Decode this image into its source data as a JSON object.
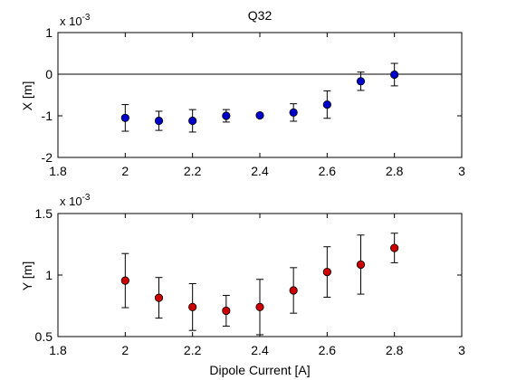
{
  "chart_data": [
    {
      "type": "scatter",
      "title": "Q32",
      "xlabel": "",
      "ylabel": "X [m]",
      "exponent_label": "x 10",
      "exponent_power": "-3",
      "xlim": [
        1.8,
        3
      ],
      "ylim": [
        -2,
        1
      ],
      "xticks": [
        "1.8",
        "2",
        "2.2",
        "2.4",
        "2.6",
        "2.8",
        "3"
      ],
      "yticks": [
        "-2",
        "-1",
        "0",
        "1"
      ],
      "zero_line": true,
      "grid": false,
      "series": [
        {
          "color": "#0000cc",
          "x": [
            2.0,
            2.1,
            2.2,
            2.3,
            2.4,
            2.5,
            2.6,
            2.7,
            2.8
          ],
          "y": [
            -1.05,
            -1.12,
            -1.12,
            -1.0,
            -0.99,
            -0.92,
            -0.73,
            -0.17,
            -0.01
          ],
          "err": [
            0.32,
            0.23,
            0.27,
            0.15,
            0.05,
            0.21,
            0.33,
            0.22,
            0.27
          ]
        }
      ]
    },
    {
      "type": "scatter",
      "title": "",
      "xlabel": "Dipole Current [A]",
      "ylabel": "Y [m]",
      "exponent_label": "x 10",
      "exponent_power": "-3",
      "xlim": [
        1.8,
        3
      ],
      "ylim": [
        0.5,
        1.5
      ],
      "xticks": [
        "1.8",
        "2",
        "2.2",
        "2.4",
        "2.6",
        "2.8",
        "3"
      ],
      "yticks": [
        "0.5",
        "1",
        "1.5"
      ],
      "zero_line": false,
      "grid": false,
      "series": [
        {
          "color": "#cc0000",
          "x": [
            2.0,
            2.1,
            2.2,
            2.3,
            2.4,
            2.5,
            2.6,
            2.7,
            2.8
          ],
          "y": [
            0.955,
            0.815,
            0.74,
            0.71,
            0.74,
            0.875,
            1.025,
            1.085,
            1.22
          ],
          "err": [
            0.22,
            0.165,
            0.19,
            0.125,
            0.225,
            0.185,
            0.205,
            0.24,
            0.12
          ]
        }
      ]
    }
  ]
}
